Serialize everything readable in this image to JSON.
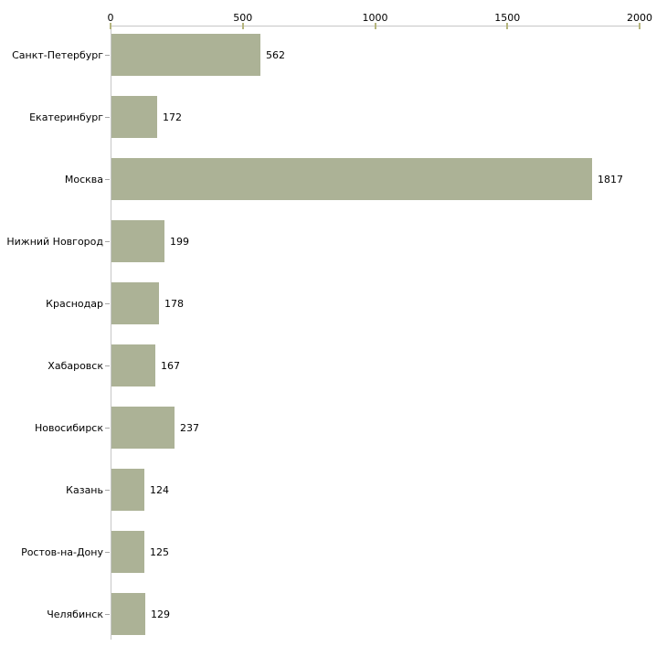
{
  "chart_data": {
    "type": "bar",
    "orientation": "horizontal",
    "title": "",
    "xlabel": "",
    "ylabel": "",
    "grid": false,
    "legend": null,
    "xlim": [
      0,
      2000
    ],
    "x_ticks": [
      0,
      500,
      1000,
      1500,
      2000
    ],
    "categories": [
      "Санкт-Петербург",
      "Екатеринбург",
      "Москва",
      "Нижний Новгород",
      "Краснодар",
      "Хабаровск",
      "Новосибирск",
      "Казань",
      "Ростов-на-Дону",
      "Челябинск"
    ],
    "values": [
      562,
      172,
      1817,
      199,
      178,
      167,
      237,
      124,
      125,
      129
    ],
    "colors": {
      "bar": "#acb296",
      "axis_line": "#c6c6c6",
      "x_tick": "#b5b57d",
      "y_tick": "#a6a6a6",
      "text": "#000000",
      "background": "#ffffff"
    }
  }
}
